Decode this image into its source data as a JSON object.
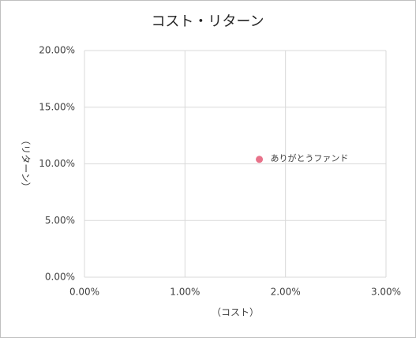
{
  "chart_data": {
    "type": "scatter",
    "title": "コスト・リターン",
    "x_label": "（コスト）",
    "y_label": "（リターン）",
    "series": [
      {
        "name": "ありがとうファンド",
        "color": "#e8728a",
        "x": [
          1.74
        ],
        "values": [
          10.4
        ]
      }
    ],
    "xlim": [
      0,
      3
    ],
    "xticks": [
      {
        "value": 0,
        "label": "0.00%"
      },
      {
        "value": 1,
        "label": "1.00%"
      },
      {
        "value": 2,
        "label": "2.00%"
      },
      {
        "value": 3,
        "label": "3.00%"
      }
    ],
    "ylim": [
      0,
      20
    ],
    "yticks": [
      {
        "value": 0,
        "label": "0.00%"
      },
      {
        "value": 5,
        "label": "5.00%"
      },
      {
        "value": 10,
        "label": "10.00%"
      },
      {
        "value": 15,
        "label": "15.00%"
      },
      {
        "value": 20,
        "label": "20.00%"
      }
    ],
    "grid": true
  }
}
